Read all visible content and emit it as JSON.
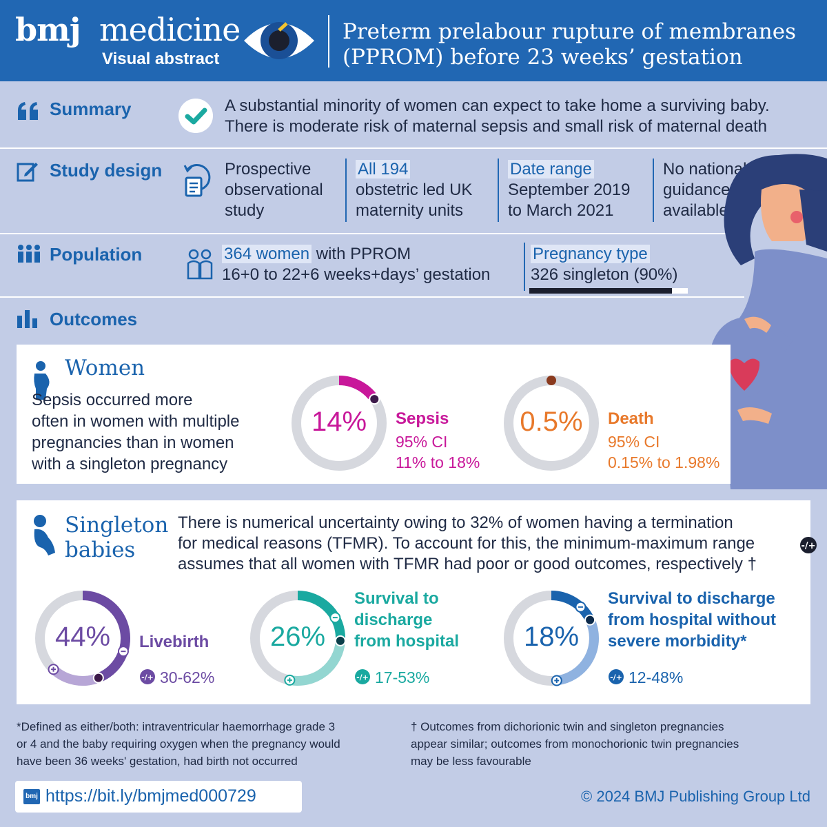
{
  "header": {
    "brand_bold": "bmj",
    "brand_regular": "medicine",
    "subtitle": "Visual abstract",
    "title_line1": "Preterm prelabour rupture of membranes",
    "title_line2": "(PPROM) before 23 weeks’ gestation"
  },
  "summary": {
    "label": "Summary",
    "icon": "checkmark-icon",
    "line1": "A substantial minority of women can expect to take home a surviving baby.",
    "line2": "There is moderate risk of maternal sepsis and small risk of maternal death"
  },
  "study_design": {
    "label": "Study design",
    "icon": "pencil-icon",
    "col1": [
      "Prospective",
      "observational",
      "study"
    ],
    "col2_highlight": "All 194",
    "col2": [
      "obstetric led UK",
      "maternity units"
    ],
    "col3_highlight": "Date range",
    "col3": [
      "September 2019",
      "to March 2021"
    ],
    "col4": [
      "No national",
      "guidance",
      "available"
    ]
  },
  "population": {
    "label": "Population",
    "icon": "people-icon",
    "count_highlight": "364 women",
    "count_rest": "with PPROM",
    "gestation": "16+0 to 22+6 weeks+days’ gestation",
    "pregnancy_type_label": "Pregnancy type",
    "pregnancy_type_value": "326 singleton (90%)",
    "singleton_fraction": 0.9
  },
  "outcomes": {
    "label": "Outcomes",
    "icon": "bar-chart-icon"
  },
  "women": {
    "title": "Women",
    "text": [
      "Sepsis occurred more",
      "often in women with multiple",
      "pregnancies than in women",
      "with a singleton pregnancy"
    ],
    "sepsis": {
      "value": "14%",
      "fraction": 0.14,
      "label": "Sepsis",
      "ci_label": "95% CI",
      "ci": "11% to 18%",
      "color": "#c8189a"
    },
    "death": {
      "value": "0.5%",
      "fraction": 0.005,
      "label": "Death",
      "ci_label": "95% CI",
      "ci": "0.15% to 1.98%",
      "color": "#e8792b"
    }
  },
  "babies": {
    "title_line1": "Singleton",
    "title_line2": "babies",
    "text": [
      "There is numerical uncertainty owing to 32% of women having a termination",
      "for medical reasons (TFMR). To account for this, the minimum-maximum range",
      "assumes that all women with TFMR had poor or good outcomes, respectively †"
    ],
    "livebirth": {
      "value": "44%",
      "fraction": 0.44,
      "min": 0.3,
      "max": 0.62,
      "label": "Livebirth",
      "range": "30-62%",
      "color": "#6c4ba3",
      "light": "#b7a6d6"
    },
    "survival": {
      "value": "26%",
      "fraction": 0.26,
      "min": 0.17,
      "max": 0.53,
      "label_lines": [
        "Survival to",
        "discharge",
        "from hospital"
      ],
      "range": "17-53%",
      "color": "#1aa9a0",
      "light": "#93d6d1"
    },
    "survival_nm": {
      "value": "18%",
      "fraction": 0.18,
      "min": 0.12,
      "max": 0.48,
      "label_lines": [
        "Survival to discharge",
        "from hospital without",
        "severe morbidity*"
      ],
      "range": "12-48%",
      "color": "#1a63ad",
      "light": "#8fb2e0"
    }
  },
  "footnotes": {
    "left": [
      "*Defined as either/both: intraventricular haemorrhage grade 3",
      "or 4 and the baby requiring oxygen when the pregnancy would",
      "have been 36 weeks' gestation, had birth not occurred"
    ],
    "right": [
      "† Outcomes from dichorionic twin and singleton pregnancies",
      "appear similar; outcomes from monochorionic twin pregnancies",
      "may be less favourable"
    ]
  },
  "url_logo": "bmj",
  "url": "https://bit.ly/bmjmed000729",
  "copyright": "© 2024 BMJ Publishing Group Ltd"
}
